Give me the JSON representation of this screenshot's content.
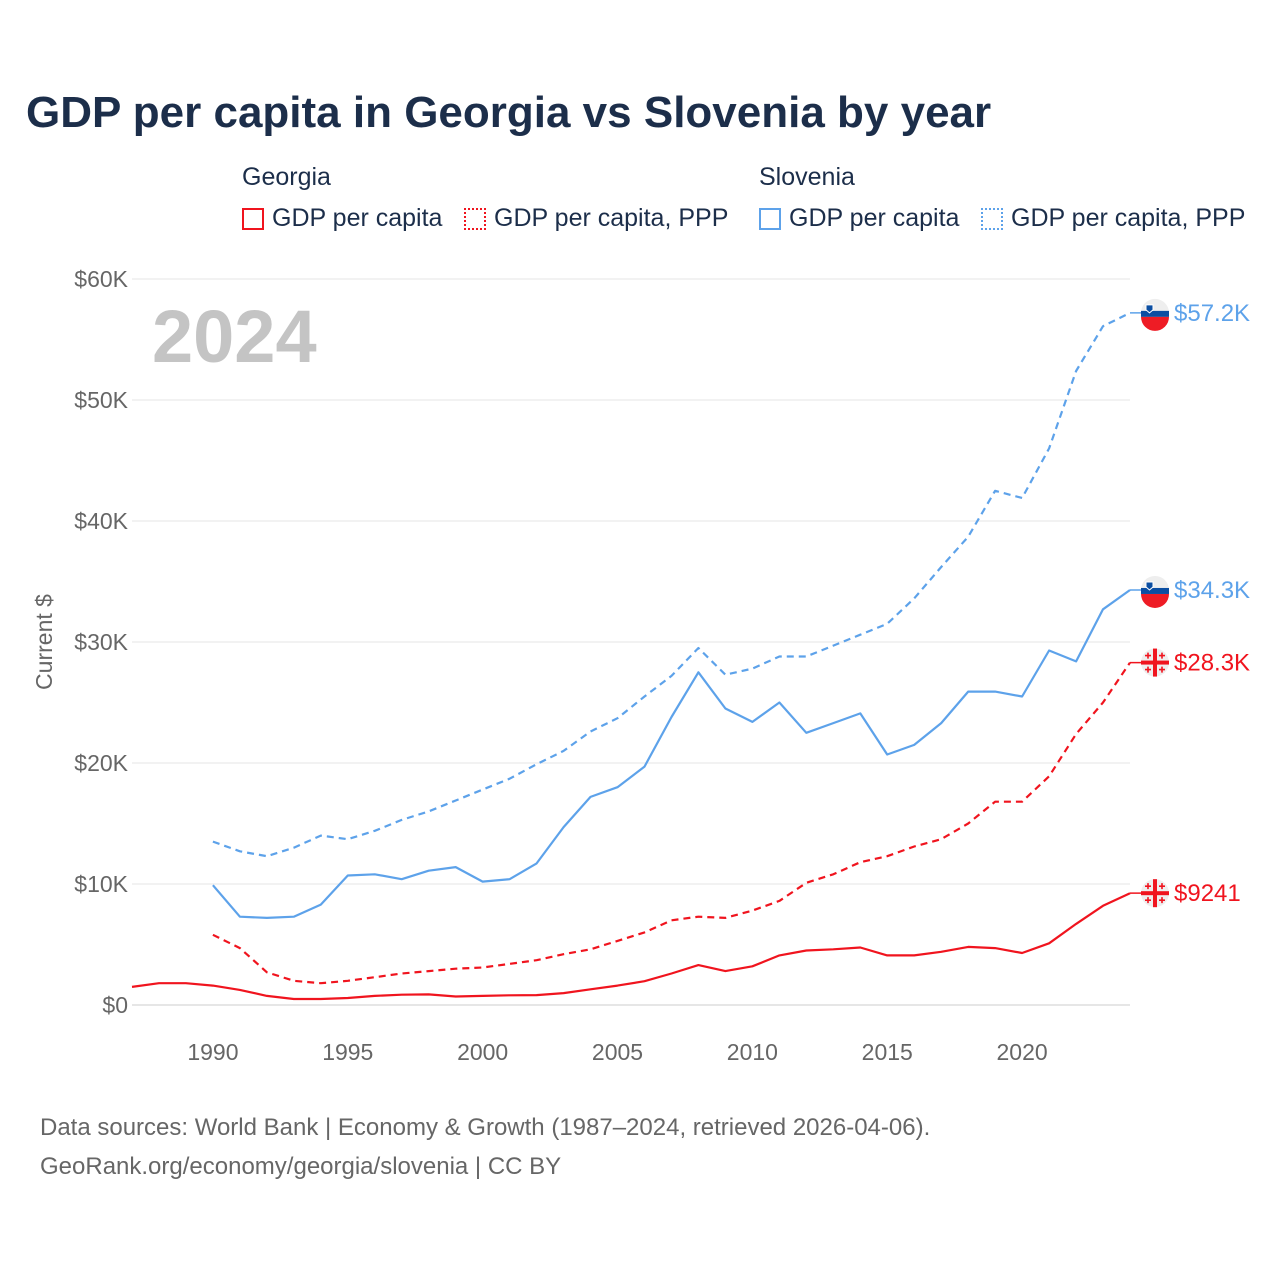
{
  "chart_data": {
    "type": "line",
    "title": "GDP per capita in Georgia vs Slovenia by year",
    "ylabel": "Current $",
    "xlabel": "",
    "year_watermark": "2024",
    "ylim": [
      0,
      60000
    ],
    "xlim": [
      1987,
      2024
    ],
    "yticks": [
      0,
      10000,
      20000,
      30000,
      40000,
      50000,
      60000
    ],
    "ytick_labels": [
      "$0",
      "$10K",
      "$20K",
      "$30K",
      "$40K",
      "$50K",
      "$60K"
    ],
    "xticks": [
      1990,
      1995,
      2000,
      2005,
      2010,
      2015,
      2020
    ],
    "xtick_labels": [
      "1990",
      "1995",
      "2000",
      "2005",
      "2010",
      "2015",
      "2020"
    ],
    "grid": true,
    "legend": {
      "placement": "top",
      "groups": [
        {
          "name": "Georgia",
          "items": [
            {
              "label": "GDP per capita",
              "style": "solid",
              "color": "#f0141e"
            },
            {
              "label": "GDP per capita, PPP",
              "style": "dotted",
              "color": "#f0141e"
            }
          ]
        },
        {
          "name": "Slovenia",
          "items": [
            {
              "label": "GDP per capita",
              "style": "solid",
              "color": "#5da2ea"
            },
            {
              "label": "GDP per capita, PPP",
              "style": "dotted",
              "color": "#5da2ea"
            }
          ]
        }
      ]
    },
    "series": [
      {
        "name": "Georgia GDP per capita",
        "country": "georgia",
        "color": "#f0141e",
        "dash": false,
        "start": 1987,
        "end_label": "$9241",
        "values": [
          1500,
          1800,
          1800,
          1600,
          1250,
          750,
          500,
          500,
          580,
          750,
          850,
          880,
          700,
          750,
          800,
          820,
          980,
          1300,
          1600,
          1970,
          2600,
          3300,
          2800,
          3200,
          4100,
          4500,
          4600,
          4750,
          4100,
          4100,
          4400,
          4800,
          4700,
          4300,
          5100,
          6700,
          8200,
          9241
        ]
      },
      {
        "name": "Georgia GDP per capita, PPP",
        "country": "georgia",
        "color": "#f0141e",
        "dash": true,
        "start": 1990,
        "end_label": "$28.3K",
        "values": [
          5800,
          4700,
          2700,
          2000,
          1800,
          2000,
          2300,
          2600,
          2800,
          3000,
          3100,
          3400,
          3700,
          4200,
          4600,
          5300,
          6000,
          7000,
          7300,
          7200,
          7800,
          8600,
          10100,
          10800,
          11800,
          12300,
          13100,
          13700,
          15000,
          16800,
          16800,
          18900,
          22400,
          25000,
          28300
        ]
      },
      {
        "name": "Slovenia GDP per capita",
        "country": "slovenia",
        "color": "#5da2ea",
        "dash": false,
        "start": 1990,
        "end_label": "$34.3K",
        "values": [
          9900,
          7300,
          7200,
          7300,
          8300,
          10700,
          10800,
          10400,
          11100,
          11400,
          10200,
          10400,
          11700,
          14700,
          17200,
          18000,
          19700,
          23800,
          27500,
          24500,
          23400,
          25000,
          22500,
          23300,
          24100,
          20700,
          21500,
          23300,
          25900,
          25900,
          25500,
          29300,
          28400,
          32700,
          34300
        ]
      },
      {
        "name": "Slovenia GDP per capita, PPP",
        "country": "slovenia",
        "color": "#5da2ea",
        "dash": true,
        "start": 1990,
        "end_label": "$57.2K",
        "values": [
          13500,
          12700,
          12300,
          13000,
          14000,
          13700,
          14400,
          15300,
          16000,
          16900,
          17800,
          18700,
          19900,
          21000,
          22600,
          23700,
          25500,
          27200,
          29500,
          27300,
          27800,
          28800,
          28800,
          29700,
          30600,
          31500,
          33600,
          36200,
          38700,
          42500,
          41900,
          46000,
          52400,
          56100,
          57200
        ]
      }
    ]
  },
  "footer": {
    "line1": "Data sources: World Bank | Economy & Growth (1987–2024, retrieved 2026-04-06).",
    "line2": "GeoRank.org/economy/georgia/slovenia | CC BY"
  }
}
